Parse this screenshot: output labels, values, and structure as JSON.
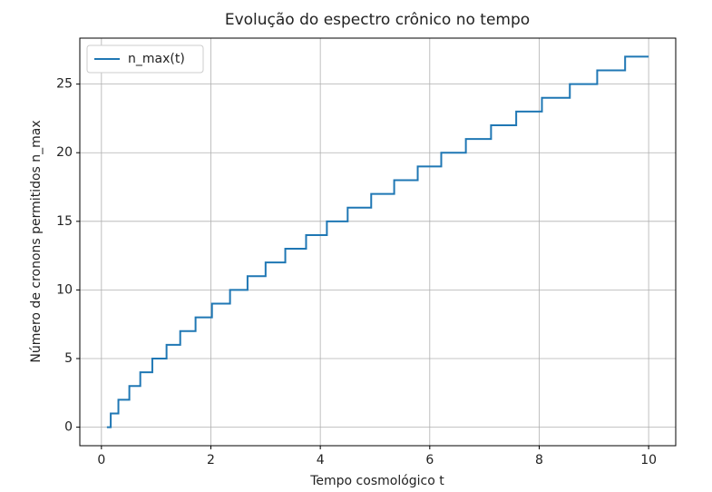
{
  "chart_data": {
    "type": "step",
    "title": "Evolução do espectro crônico no tempo",
    "x_label": "Tempo cosmológico t",
    "y_label": "Número de cronons permitidos n_max",
    "x": [
      0.1,
      0.17,
      0.31,
      0.51,
      0.71,
      0.93,
      1.19,
      1.44,
      1.72,
      2.02,
      2.35,
      2.67,
      3.0,
      3.36,
      3.74,
      4.12,
      4.5,
      4.93,
      5.35,
      5.78,
      6.21,
      6.66,
      7.12,
      7.58,
      8.05,
      8.56,
      9.06,
      9.57,
      10
    ],
    "series": [
      {
        "name": "n_max(t)",
        "color": "#1f77b4",
        "values": [
          0,
          1,
          2,
          3,
          4,
          5,
          6,
          7,
          8,
          9,
          10,
          11,
          12,
          13,
          14,
          15,
          16,
          17,
          18,
          19,
          20,
          21,
          22,
          23,
          24,
          25,
          26,
          27,
          27
        ]
      }
    ],
    "xlim": [
      -0.395,
      10.495
    ],
    "xticks": [
      0,
      2,
      4,
      6,
      8,
      10
    ],
    "ylim": [
      -1.35,
      28.35
    ],
    "yticks": [
      0,
      5,
      10,
      15,
      20,
      25
    ],
    "grid": true,
    "legend": "upper-left"
  }
}
